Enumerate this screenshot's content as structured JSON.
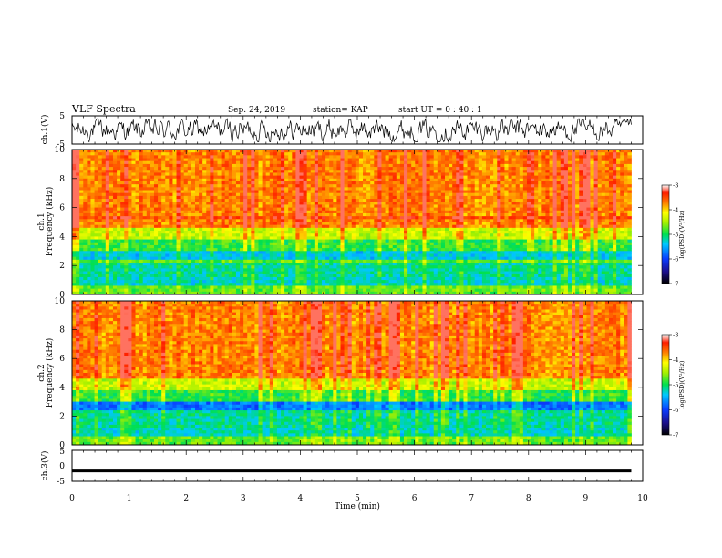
{
  "header": {
    "title": "VLF Spectra",
    "date": "Sep. 24, 2019",
    "station": "station= KAP",
    "start": "start UT =  0 : 40 : 1"
  },
  "chart_data": [
    {
      "type": "line",
      "id": "ch1-waveform",
      "ylabel": "ch.1(V)",
      "ylim": [
        -5,
        5
      ],
      "yticks": [
        "5",
        "-5"
      ],
      "xlim": [
        0,
        10
      ],
      "trace": {
        "min": -4.2,
        "max": 4.0,
        "x_end": 9.8
      }
    },
    {
      "type": "heatmap",
      "id": "ch1-spectrogram",
      "ylabel_top": "ch.1",
      "ylabel": "Frequency (kHz)",
      "ylim": [
        0,
        10
      ],
      "yticks": [
        "0",
        "2",
        "4",
        "6",
        "8",
        "10"
      ],
      "xlim": [
        0,
        10
      ],
      "data_x_end": 9.8,
      "colorbar": {
        "label": "log(PSD)(V²/Hz)",
        "range": [
          -7,
          -3
        ],
        "ticks": [
          "-3",
          "-4",
          "-5",
          "-6",
          "-7"
        ]
      }
    },
    {
      "type": "heatmap",
      "id": "ch2-spectrogram",
      "ylabel_top": "ch.2",
      "ylabel": "Frequency (kHz)",
      "ylim": [
        0,
        10
      ],
      "yticks": [
        "0",
        "2",
        "4",
        "6",
        "8",
        "10"
      ],
      "xlim": [
        0,
        10
      ],
      "data_x_end": 9.8,
      "colorbar": {
        "label": "log(PSD)(V²/Hz)",
        "range": [
          -7,
          -3
        ],
        "ticks": [
          "-3",
          "-4",
          "-5",
          "-6",
          "-7"
        ]
      }
    },
    {
      "type": "line",
      "id": "ch3-waveform",
      "ylabel": "ch.3(V)",
      "ylim": [
        -5,
        5
      ],
      "yticks": [
        "5",
        "0",
        "-5"
      ],
      "xlim": [
        0,
        10
      ],
      "trace": {
        "level": -1.5,
        "x_end": 9.8
      }
    }
  ],
  "xaxis": {
    "label": "Time (min)",
    "ticks": [
      "0",
      "1",
      "2",
      "3",
      "4",
      "5",
      "6",
      "7",
      "8",
      "9",
      "10"
    ]
  }
}
